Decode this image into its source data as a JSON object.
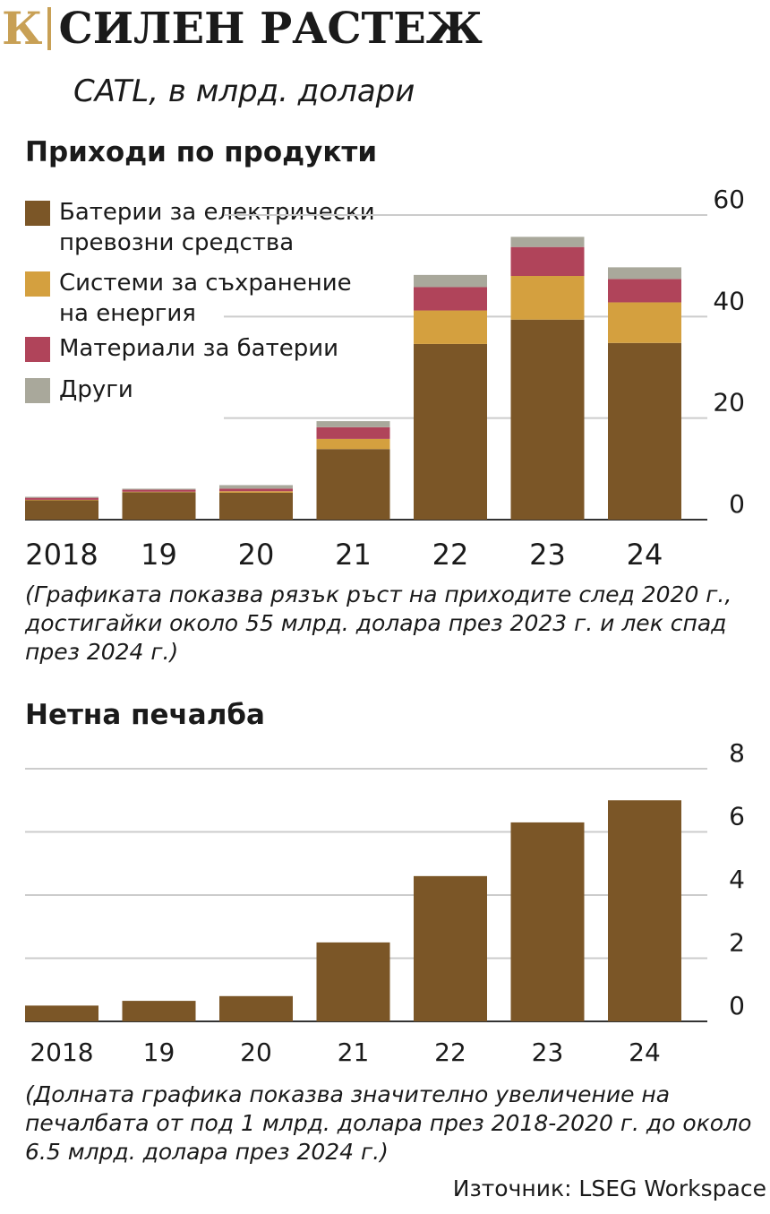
{
  "header": {
    "logo": "К",
    "title": "СИЛЕН РАСТЕЖ"
  },
  "subtitle": "CATL, в млрд. долари",
  "colors": {
    "ev": "#7b5627",
    "storage": "#d4a03f",
    "materials": "#b0445a",
    "other": "#a9a89b",
    "accent": "#c8a055",
    "grid": "#cccccc"
  },
  "revenue": {
    "title": "Приходи по продукти",
    "note": "(Графиката показва рязък ръст на приходите след 2020 г., достигайки около 55 млрд. долара през 2023 г. и лек спад през 2024 г.)"
  },
  "profit": {
    "title": "Нетна печалба",
    "note": "(Долната графика показва значително увеличение на печалбата от под 1 млрд. долара през 2018-2020 г. до около 6.5 млрд. долара през 2024 г.)"
  },
  "source": "Източник: LSEG Workspace",
  "chart_data": [
    {
      "type": "bar",
      "stacked": true,
      "title": "Приходи по продукти",
      "categories": [
        "2018",
        "19",
        "20",
        "21",
        "22",
        "23",
        "24"
      ],
      "series": [
        {
          "name": "Батерии за електрически\nпревозни средства",
          "key": "ev",
          "values": [
            3.8,
            5.4,
            5.3,
            13.9,
            34.6,
            39.4,
            34.8
          ]
        },
        {
          "name": "Системи за съхранение\nна енергия",
          "key": "storage",
          "values": [
            0.1,
            0.1,
            0.3,
            2.0,
            6.6,
            8.6,
            8.0
          ]
        },
        {
          "name": "Материали за батерии",
          "key": "materials",
          "values": [
            0.4,
            0.4,
            0.5,
            2.3,
            4.6,
            5.7,
            4.6
          ]
        },
        {
          "name": "Други",
          "key": "other",
          "values": [
            0.2,
            0.2,
            0.7,
            1.2,
            2.4,
            2.0,
            2.3
          ]
        }
      ],
      "ylim": [
        0,
        60
      ],
      "yticks": [
        0,
        20,
        40,
        60
      ],
      "legend": "top-left",
      "grid": true
    },
    {
      "type": "bar",
      "title": "Нетна печалба",
      "categories": [
        "2018",
        "19",
        "20",
        "21",
        "22",
        "23",
        "24"
      ],
      "values": [
        0.5,
        0.65,
        0.8,
        2.5,
        4.6,
        6.3,
        7.0
      ],
      "ylim": [
        0,
        8
      ],
      "yticks": [
        0,
        2,
        4,
        6,
        8
      ],
      "grid": true
    }
  ]
}
